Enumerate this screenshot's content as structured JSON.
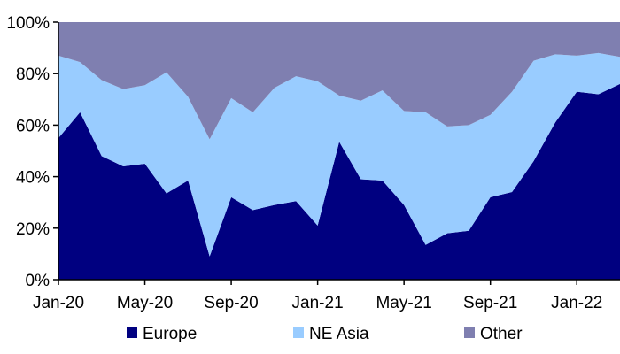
{
  "chart_data": {
    "type": "area",
    "stacked": true,
    "x": [
      "2020-01",
      "2020-02",
      "2020-03",
      "2020-04",
      "2020-05",
      "2020-06",
      "2020-07",
      "2020-08",
      "2020-09",
      "2020-10",
      "2020-11",
      "2020-12",
      "2021-01",
      "2021-02",
      "2021-03",
      "2021-04",
      "2021-05",
      "2021-06",
      "2021-07",
      "2021-08",
      "2021-09",
      "2021-10",
      "2021-11",
      "2021-12",
      "2022-01",
      "2022-02",
      "2022-03"
    ],
    "x_tick_labels": [
      "Jan-20",
      "May-20",
      "Sep-20",
      "Jan-21",
      "May-21",
      "Sep-21",
      "Jan-22"
    ],
    "y_tick_labels": [
      "0%",
      "20%",
      "40%",
      "60%",
      "80%",
      "100%"
    ],
    "ylim": [
      0,
      100
    ],
    "grid": false,
    "legend_position": "bottom",
    "series": [
      {
        "name": "Europe",
        "color": "#000080",
        "values": [
          55,
          65,
          48,
          44,
          45,
          33.5,
          38.5,
          9,
          32,
          27,
          29,
          30.5,
          21,
          53.5,
          39,
          38.5,
          29,
          13.5,
          18,
          19,
          32,
          34,
          46,
          61,
          73,
          72,
          76
        ]
      },
      {
        "name": "NE Asia",
        "color": "#99ccff",
        "values": [
          32,
          19.5,
          29.5,
          30,
          30.5,
          47,
          32.5,
          45.5,
          38.5,
          38,
          45.5,
          48.5,
          56,
          18,
          30.5,
          35,
          36.5,
          51.5,
          41.5,
          41,
          32,
          39,
          39,
          26.5,
          14,
          16,
          10.5
        ]
      },
      {
        "name": "Other",
        "color": "#7f7fb0",
        "values": [
          13,
          15.5,
          22.5,
          26,
          24.5,
          19.5,
          29,
          45.5,
          29.5,
          35,
          25.5,
          21,
          23,
          28.5,
          30.5,
          26.5,
          34.5,
          35,
          40.5,
          40,
          36,
          27,
          15,
          12.5,
          13,
          12,
          13.5
        ]
      }
    ]
  }
}
